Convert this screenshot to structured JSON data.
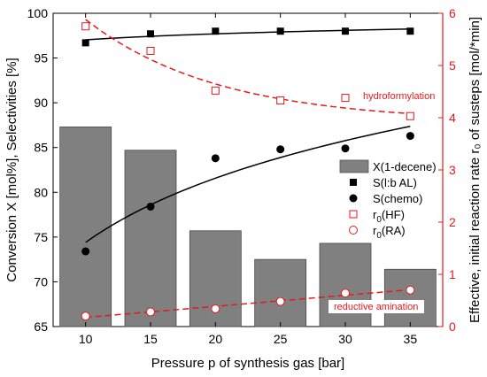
{
  "chart_data": {
    "type": "bar",
    "x": [
      10,
      15,
      20,
      25,
      30,
      35
    ],
    "xlabel": "Pressure p of synthesis gas [bar]",
    "ylabel_left": "Conversion X [mol%], Selectivities [%]",
    "ylabel_right": "Effective, initial reaction rate r₀ of susteps [mol/*min]",
    "ylim_left": [
      65,
      100
    ],
    "ylim_right": [
      0,
      6
    ],
    "xticks": [
      10,
      15,
      20,
      25,
      30,
      35
    ],
    "yticks_left": [
      65,
      70,
      75,
      80,
      85,
      90,
      95,
      100
    ],
    "yticks_right": [
      0,
      1,
      2,
      3,
      4,
      5,
      6
    ],
    "grid": false,
    "legend_position": "center-right",
    "accent_color": "#e41a1c",
    "series": [
      {
        "name": "X(1-decene)",
        "kind": "bar",
        "axis": "left",
        "color": "#808080",
        "values": [
          87.3,
          84.7,
          75.7,
          72.5,
          74.3,
          71.4
        ]
      },
      {
        "name": "S(l:b AL)",
        "kind": "scatter",
        "marker": "filled-square",
        "axis": "left",
        "color": "#000000",
        "values": [
          96.7,
          97.7,
          98.0,
          98.0,
          98.0,
          98.0
        ]
      },
      {
        "name": "S(chemo)",
        "kind": "scatter",
        "marker": "filled-circle",
        "axis": "left",
        "color": "#000000",
        "values": [
          73.4,
          78.4,
          83.8,
          84.8,
          84.9,
          86.3
        ]
      },
      {
        "name_main": "r",
        "name_sub": "0",
        "name_tail": "(HF)",
        "kind": "scatter",
        "marker": "open-square",
        "axis": "right",
        "color": "#e41a1c",
        "values": [
          5.75,
          5.28,
          4.52,
          4.33,
          4.38,
          4.03
        ]
      },
      {
        "name_main": "r",
        "name_sub": "0",
        "name_tail": "(RA)",
        "kind": "scatter",
        "marker": "open-circle",
        "axis": "right",
        "color": "#e41a1c",
        "values": [
          0.2,
          0.28,
          0.34,
          0.48,
          0.64,
          0.7
        ]
      }
    ],
    "annotations": [
      {
        "text": "hydroformylation",
        "color": "#e41a1c"
      },
      {
        "text": "reductive amination",
        "color": "#e41a1c"
      }
    ]
  }
}
